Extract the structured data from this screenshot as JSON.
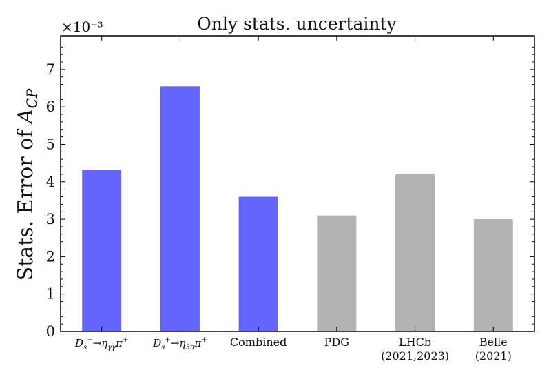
{
  "chart_data": {
    "type": "bar",
    "title": "Only stats. uncertainty",
    "ylabel": "Stats. Error of A_CP",
    "y_multiplier": "×10⁻³",
    "ylim": [
      0,
      7.9
    ],
    "yticks": [
      "0",
      "1",
      "2",
      "3",
      "4",
      "5",
      "6",
      "7"
    ],
    "categories": [
      "D_s^+ → η_γγ π^+",
      "D_s^+ → η_3π π^+",
      "Combined",
      "PDG",
      "LHCb (2021,2023)",
      "Belle (2021)"
    ],
    "category_lines": [
      [],
      [],
      [
        "Combined"
      ],
      [
        "PDG"
      ],
      [
        "LHCb",
        "(2021,2023)"
      ],
      [
        "Belle",
        "(2021)"
      ]
    ],
    "values": [
      4.32,
      6.55,
      3.6,
      3.1,
      4.2,
      3.0
    ],
    "bar_colors": [
      "#6464ff",
      "#6464ff",
      "#6464ff",
      "#b2b2b2",
      "#b2b2b2",
      "#b2b2b2"
    ],
    "grid": false,
    "legend": "none"
  }
}
